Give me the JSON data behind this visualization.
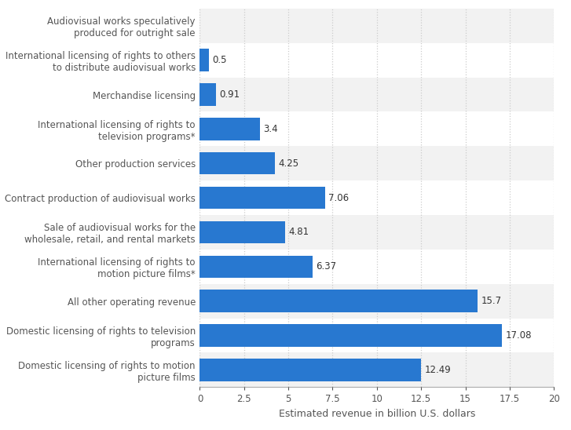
{
  "categories": [
    "Audiovisual works speculatively\nproduced for outright sale",
    "International licensing of rights to others\nto distribute audiovisual works",
    "Merchandise licensing",
    "International licensing of rights to\ntelevision programs*",
    "Other production services",
    "Contract production of audiovisual works",
    "Sale of audiovisual works for the\nwholesale, retail, and rental markets",
    "International licensing of rights to\nmotion picture films*",
    "All other operating revenue",
    "Domestic licensing of rights to television\nprograms",
    "Domestic licensing of rights to motion\npicture films"
  ],
  "values": [
    0,
    0.5,
    0.91,
    3.4,
    4.25,
    7.06,
    4.81,
    6.37,
    15.7,
    17.08,
    12.49
  ],
  "bar_color": "#2878d0",
  "label_color": "#555555",
  "value_color": "#333333",
  "background_color": "#ffffff",
  "row_colors": [
    "#f2f2f2",
    "#ffffff"
  ],
  "xlabel": "Estimated revenue in billion U.S. dollars",
  "xlim": [
    0,
    20
  ],
  "xticks": [
    0,
    2.5,
    5,
    7.5,
    10,
    12.5,
    15,
    17.5,
    20
  ],
  "xtick_labels": [
    "0",
    "2.5",
    "5",
    "7.5",
    "10",
    "12.5",
    "15",
    "17.5",
    "20"
  ],
  "grid_color": "#cccccc",
  "label_fontsize": 8.5,
  "value_fontsize": 8.5,
  "xlabel_fontsize": 9
}
